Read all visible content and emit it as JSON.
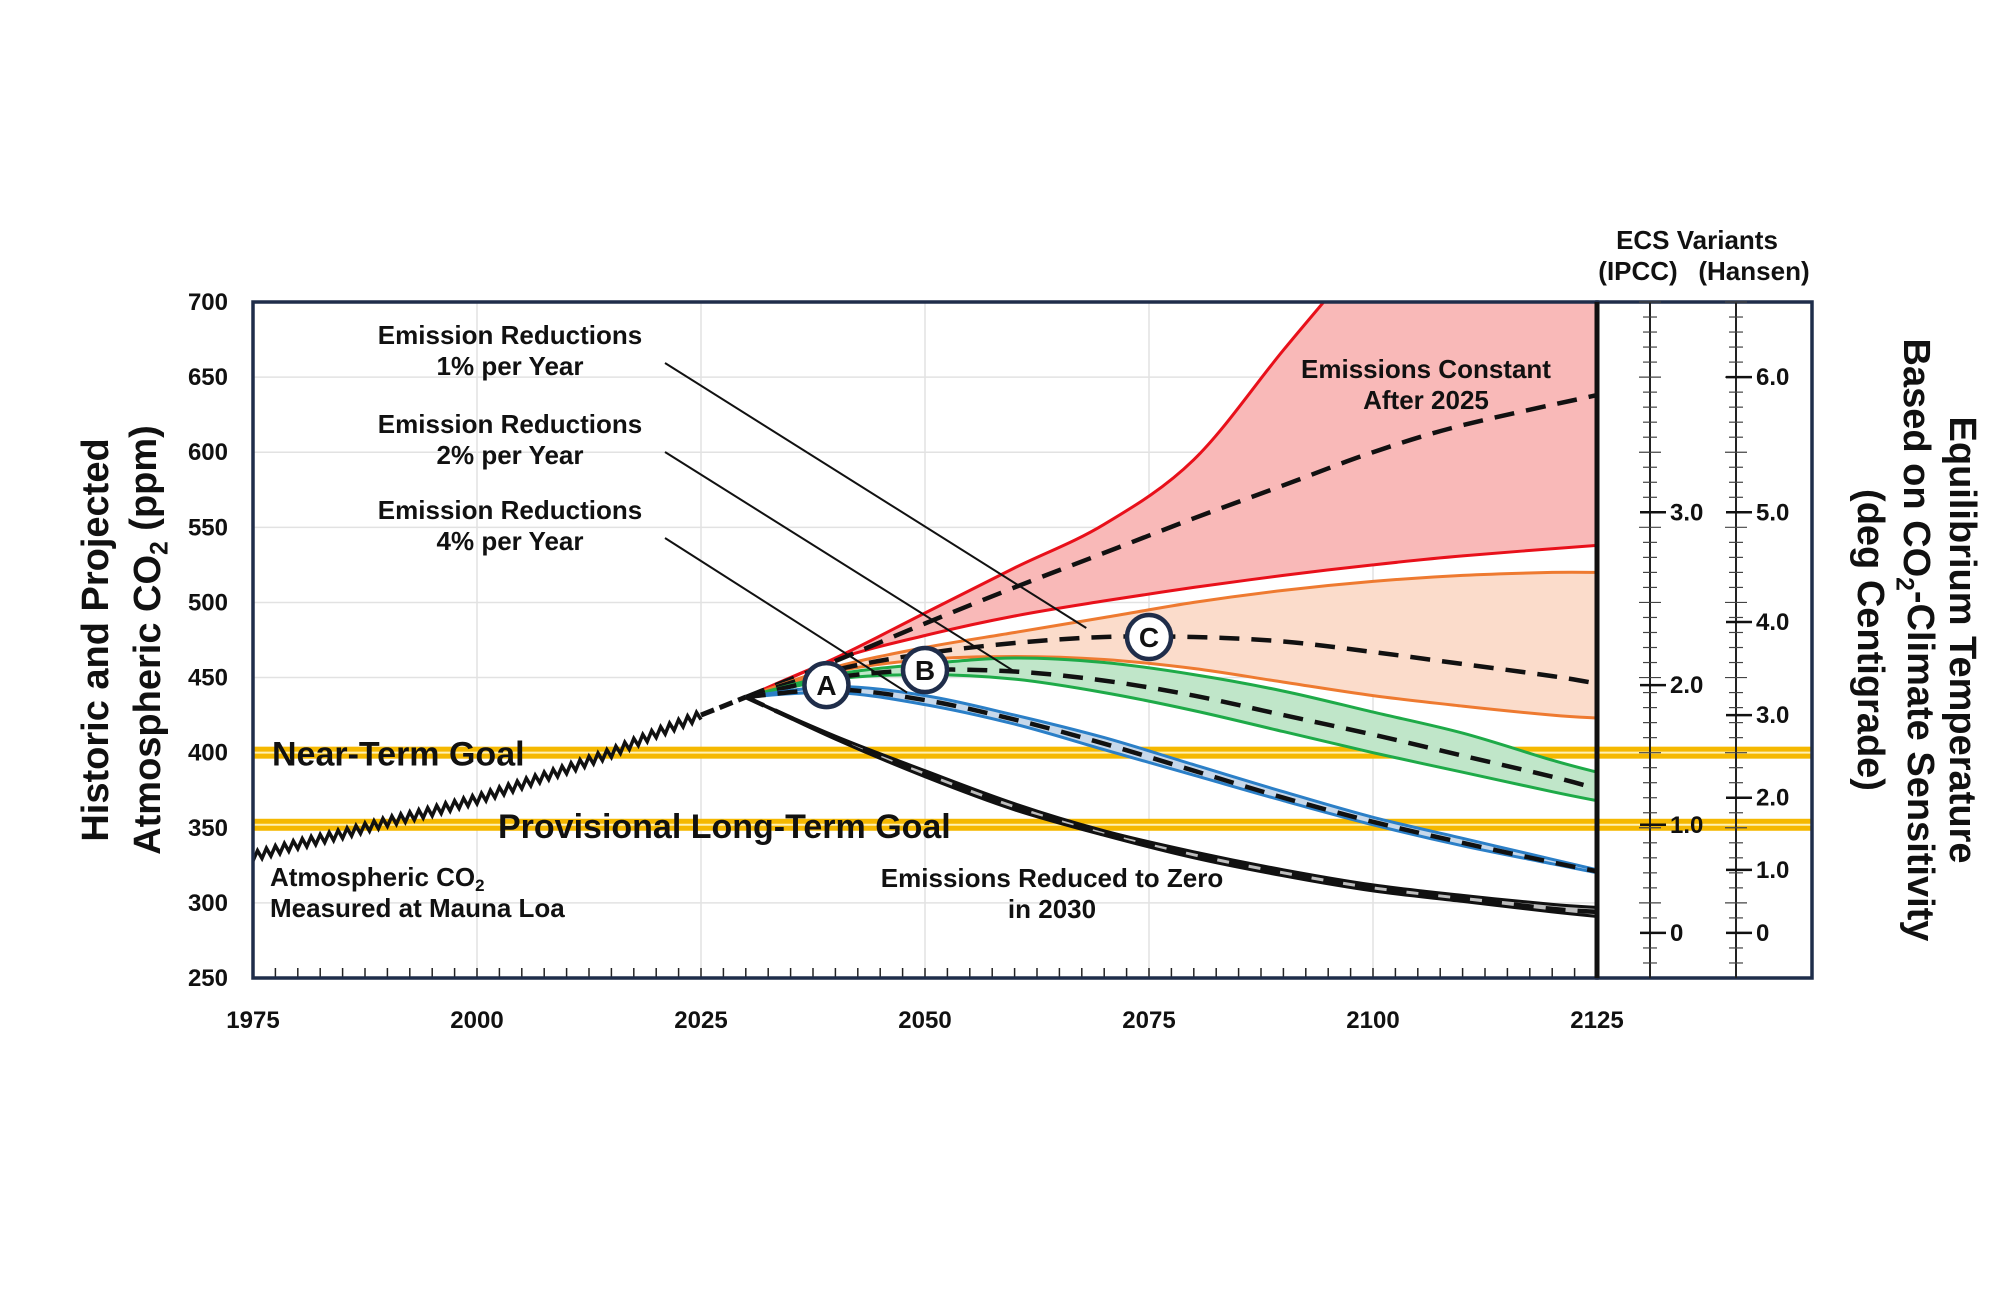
{
  "chart_data": {
    "type": "line",
    "xlim": [
      1975,
      2125
    ],
    "ylim": [
      250,
      700
    ],
    "x_ticks": [
      1975,
      2000,
      2025,
      2050,
      2075,
      2100,
      2125
    ],
    "y_ticks": [
      250,
      300,
      350,
      400,
      450,
      500,
      550,
      600,
      650,
      700
    ],
    "ylabel_line1": "Historic and Projected",
    "ylabel_line2_prefix": "Atmospheric CO",
    "ylabel_line2_sub": "2",
    "ylabel_line2_suffix": " (ppm)",
    "right_label_line1": "Equilibrium Temperature",
    "right_label_line2_prefix": "Based on CO",
    "right_label_line2_sub": "2",
    "right_label_line2_suffix": "-Climate Sensitivity",
    "right_label_line3": "(deg Centigrade)",
    "ecs_header": "ECS Variants",
    "ecs_axes": [
      {
        "name": "(IPCC)",
        "ticks": [
          {
            "label": "0",
            "ppm": 280
          },
          {
            "label": "1.0",
            "ppm": 352
          },
          {
            "label": "2.0",
            "ppm": 445
          },
          {
            "label": "3.0",
            "ppm": 560
          }
        ]
      },
      {
        "name": "(Hansen)",
        "ticks": [
          {
            "label": "0",
            "ppm": 280
          },
          {
            "label": "1.0",
            "ppm": 322
          },
          {
            "label": "2.0",
            "ppm": 370
          },
          {
            "label": "3.0",
            "ppm": 425
          },
          {
            "label": "4.0",
            "ppm": 487
          },
          {
            "label": "5.0",
            "ppm": 560
          },
          {
            "label": "6.0",
            "ppm": 650
          }
        ]
      }
    ],
    "goals": [
      {
        "label": "Near-Term Goal",
        "value": 400,
        "color": "#f5b800"
      },
      {
        "label": "Provisional Long-Term Goal",
        "value": 352,
        "color": "#f5b800"
      }
    ],
    "historic": {
      "name": "Atmospheric CO2 Measured at Mauna Loa",
      "x": [
        1975,
        1980,
        1985,
        1990,
        1995,
        2000,
        2005,
        2010,
        2015,
        2020,
        2025,
        2030
      ],
      "y": [
        331,
        339,
        346,
        354,
        361,
        369,
        379,
        389,
        400,
        413,
        425,
        437
      ]
    },
    "bands": [
      {
        "name": "Emissions Constant After 2025",
        "color": "#e8101a",
        "fill": "#f9b9b8",
        "x": [
          2030,
          2040,
          2050,
          2060,
          2070,
          2080,
          2090,
          2100,
          2110,
          2125
        ],
        "lower": [
          437,
          462,
          478,
          491,
          501,
          510,
          518,
          525,
          531,
          538
        ],
        "upper": [
          437,
          463,
          493,
          523,
          552,
          595,
          668,
          740,
          820,
          920
        ],
        "mid": [
          437,
          461,
          486,
          510,
          533,
          556,
          578,
          600,
          618,
          638
        ]
      },
      {
        "name": "Emission Reductions 1% per Year",
        "color": "#ee7a30",
        "fill": "#fbdccb",
        "x": [
          2030,
          2040,
          2050,
          2060,
          2070,
          2080,
          2090,
          2100,
          2110,
          2120,
          2125
        ],
        "lower": [
          437,
          454,
          462,
          464,
          462,
          456,
          447,
          438,
          431,
          425,
          423
        ],
        "upper": [
          437,
          457,
          470,
          480,
          490,
          500,
          508,
          514,
          518,
          520,
          520
        ],
        "mid": [
          437,
          455,
          466,
          473,
          477,
          477,
          474,
          467,
          459,
          451,
          446
        ]
      },
      {
        "name": "Emission Reductions 2% per Year",
        "color": "#1eaa48",
        "fill": "#c0e6c9",
        "x": [
          2030,
          2040,
          2050,
          2060,
          2070,
          2080,
          2090,
          2100,
          2110,
          2120,
          2125
        ],
        "lower": [
          437,
          449,
          452,
          449,
          440,
          428,
          414,
          400,
          387,
          374,
          368
        ],
        "upper": [
          437,
          452,
          459,
          463,
          460,
          452,
          441,
          427,
          413,
          395,
          387
        ],
        "mid": [
          437,
          450,
          455,
          454,
          448,
          438,
          425,
          412,
          398,
          384,
          376
        ]
      },
      {
        "name": "Emission Reductions 4% per Year",
        "color": "#2b7fc7",
        "fill": "#c7d8ea",
        "x": [
          2030,
          2040,
          2050,
          2060,
          2070,
          2080,
          2090,
          2100,
          2110,
          2120,
          2125
        ],
        "lower": [
          437,
          440,
          432,
          419,
          402,
          385,
          368,
          352,
          338,
          326,
          320
        ],
        "upper": [
          437,
          444,
          438,
          425,
          410,
          392,
          374,
          357,
          343,
          329,
          322
        ],
        "mid": [
          437,
          442,
          435,
          422,
          406,
          388,
          370,
          354,
          340,
          327,
          321
        ]
      },
      {
        "name": "Emissions Reduced to Zero in 2030",
        "color": "#111111",
        "fill": "#bdbdbd",
        "x": [
          2030,
          2040,
          2050,
          2060,
          2070,
          2080,
          2090,
          2100,
          2110,
          2120,
          2125
        ],
        "lower": [
          437,
          409,
          384,
          362,
          345,
          330,
          318,
          308,
          301,
          294,
          291
        ],
        "upper": [
          437,
          411,
          388,
          366,
          348,
          334,
          322,
          312,
          305,
          299,
          297
        ],
        "mid": [
          437,
          410,
          386,
          364,
          347,
          332,
          320,
          310,
          303,
          296,
          294
        ]
      }
    ],
    "markers": [
      {
        "label": "A",
        "x": 2039,
        "y": 445
      },
      {
        "label": "B",
        "x": 2050,
        "y": 455
      },
      {
        "label": "C",
        "x": 2075,
        "y": 477
      }
    ],
    "annotations": [
      {
        "lines": [
          "Emission Reductions",
          "1% per Year"
        ],
        "target_x": 2068,
        "target_y": 483
      },
      {
        "lines": [
          "Emission Reductions",
          "2% per Year"
        ],
        "target_x": 2060,
        "target_y": 454
      },
      {
        "lines": [
          "Emission Reductions",
          "4% per Year"
        ],
        "target_x": 2048,
        "target_y": 440
      },
      {
        "lines": [
          "Emissions Constant",
          "After 2025"
        ]
      },
      {
        "lines": [
          "Emissions Reduced to Zero",
          "in 2030"
        ]
      }
    ],
    "historic_label_prefix": "Atmospheric CO",
    "historic_label_sub": "2",
    "historic_label_line2": "Measured at Mauna Loa"
  }
}
